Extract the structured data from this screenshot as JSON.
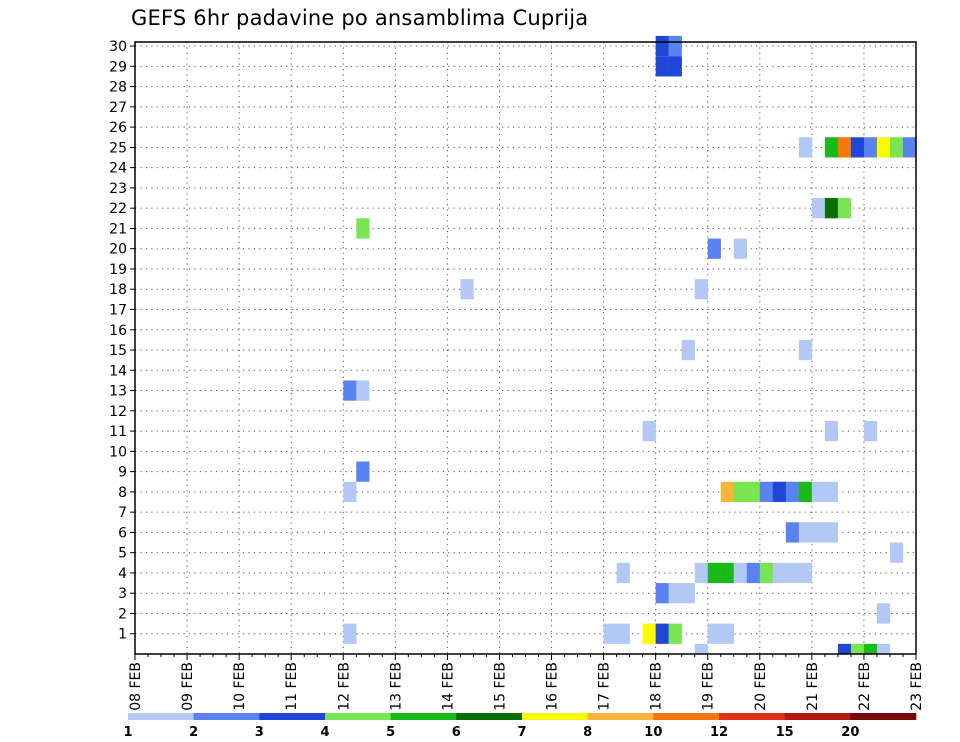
{
  "chart_data": {
    "type": "heatmap",
    "title": "GEFS 6hr padavine po ansamblima Cuprija",
    "x_tick_labels": [
      "08 FEB",
      "09 FEB",
      "10 FEB",
      "11 FEB",
      "12 FEB",
      "13 FEB",
      "14 FEB",
      "15 FEB",
      "16 FEB",
      "17 FEB",
      "18 FEB",
      "19 FEB",
      "20 FEB",
      "21 FEB",
      "22 FEB",
      "23 FEB"
    ],
    "y_tick_labels": [
      "1",
      "2",
      "3",
      "4",
      "5",
      "6",
      "7",
      "8",
      "9",
      "10",
      "11",
      "12",
      "13",
      "14",
      "15",
      "16",
      "17",
      "18",
      "19",
      "20",
      "21",
      "22",
      "23",
      "24",
      "25",
      "26",
      "27",
      "28",
      "29",
      "30"
    ],
    "x_unit": "6-hour steps from 08 FEB 00Z",
    "ylim": [
      0,
      30
    ],
    "grid": true,
    "legend": {
      "placement": "bottom",
      "labels": [
        "1",
        "2",
        "3",
        "4",
        "5",
        "6",
        "7",
        "8",
        "10",
        "12",
        "15",
        "20"
      ],
      "colors": [
        "#b4c8f5",
        "#5a82f0",
        "#1e46d7",
        "#78e650",
        "#19b919",
        "#0a6e0a",
        "#fafa00",
        "#fab43c",
        "#f5780a",
        "#dc3219",
        "#b4190f",
        "#780a0a"
      ]
    },
    "cells": [
      {
        "member": 30,
        "step": 40,
        "value": 3
      },
      {
        "member": 30,
        "step": 41,
        "value": 2
      },
      {
        "member": 29,
        "step": 40,
        "value": 3
      },
      {
        "member": 29,
        "step": 41,
        "value": 3
      },
      {
        "member": 25,
        "step": 51,
        "value": 1
      },
      {
        "member": 25,
        "step": 53,
        "value": 5
      },
      {
        "member": 25,
        "step": 54,
        "value": 10
      },
      {
        "member": 25,
        "step": 55,
        "value": 3
      },
      {
        "member": 25,
        "step": 56,
        "value": 2
      },
      {
        "member": 25,
        "step": 57,
        "value": 7
      },
      {
        "member": 25,
        "step": 58,
        "value": 4
      },
      {
        "member": 25,
        "step": 59,
        "value": 2
      },
      {
        "member": 22,
        "step": 52,
        "value": 1
      },
      {
        "member": 22,
        "step": 53,
        "value": 6
      },
      {
        "member": 22,
        "step": 54,
        "value": 4
      },
      {
        "member": 21,
        "step": 17,
        "value": 4
      },
      {
        "member": 20,
        "step": 44,
        "value": 2
      },
      {
        "member": 20,
        "step": 46,
        "value": 1
      },
      {
        "member": 18,
        "step": 25,
        "value": 1
      },
      {
        "member": 18,
        "step": 43,
        "value": 1
      },
      {
        "member": 15,
        "step": 42,
        "value": 1
      },
      {
        "member": 15,
        "step": 51,
        "value": 1
      },
      {
        "member": 13,
        "step": 16,
        "value": 2
      },
      {
        "member": 13,
        "step": 17,
        "value": 1
      },
      {
        "member": 11,
        "step": 39,
        "value": 1
      },
      {
        "member": 11,
        "step": 53,
        "value": 1
      },
      {
        "member": 11,
        "step": 56,
        "value": 1
      },
      {
        "member": 9,
        "step": 17,
        "value": 2
      },
      {
        "member": 8,
        "step": 16,
        "value": 1
      },
      {
        "member": 8,
        "step": 45,
        "value": 8
      },
      {
        "member": 8,
        "step": 46,
        "value": 4
      },
      {
        "member": 8,
        "step": 47,
        "value": 4
      },
      {
        "member": 8,
        "step": 48,
        "value": 2
      },
      {
        "member": 8,
        "step": 49,
        "value": 3
      },
      {
        "member": 8,
        "step": 50,
        "value": 2
      },
      {
        "member": 8,
        "step": 51,
        "value": 5
      },
      {
        "member": 8,
        "step": 52,
        "value": 1
      },
      {
        "member": 8,
        "step": 53,
        "value": 1
      },
      {
        "member": 6,
        "step": 50,
        "value": 2
      },
      {
        "member": 6,
        "step": 51,
        "value": 1
      },
      {
        "member": 6,
        "step": 52,
        "value": 1
      },
      {
        "member": 6,
        "step": 53,
        "value": 1
      },
      {
        "member": 5,
        "step": 58,
        "value": 1
      },
      {
        "member": 4,
        "step": 37,
        "value": 1
      },
      {
        "member": 4,
        "step": 43,
        "value": 1
      },
      {
        "member": 4,
        "step": 44,
        "value": 5
      },
      {
        "member": 4,
        "step": 45,
        "value": 5
      },
      {
        "member": 4,
        "step": 46,
        "value": 1
      },
      {
        "member": 4,
        "step": 47,
        "value": 2
      },
      {
        "member": 4,
        "step": 48,
        "value": 4
      },
      {
        "member": 4,
        "step": 49,
        "value": 1
      },
      {
        "member": 4,
        "step": 50,
        "value": 1
      },
      {
        "member": 4,
        "step": 51,
        "value": 1
      },
      {
        "member": 3,
        "step": 40,
        "value": 2
      },
      {
        "member": 3,
        "step": 41,
        "value": 1
      },
      {
        "member": 3,
        "step": 42,
        "value": 1
      },
      {
        "member": 2,
        "step": 57,
        "value": 1
      },
      {
        "member": 1,
        "step": 16,
        "value": 1
      },
      {
        "member": 1,
        "step": 36,
        "value": 1
      },
      {
        "member": 1,
        "step": 37,
        "value": 1
      },
      {
        "member": 1,
        "step": 39,
        "value": 7
      },
      {
        "member": 1,
        "step": 40,
        "value": 3
      },
      {
        "member": 1,
        "step": 41,
        "value": 4
      },
      {
        "member": 1,
        "step": 44,
        "value": 1
      },
      {
        "member": 1,
        "step": 45,
        "value": 1
      },
      {
        "member": 0,
        "step": 43,
        "value": 1
      },
      {
        "member": 0,
        "step": 54,
        "value": 3
      },
      {
        "member": 0,
        "step": 55,
        "value": 4
      },
      {
        "member": 0,
        "step": 56,
        "value": 5
      },
      {
        "member": 0,
        "step": 57,
        "value": 1
      }
    ]
  }
}
